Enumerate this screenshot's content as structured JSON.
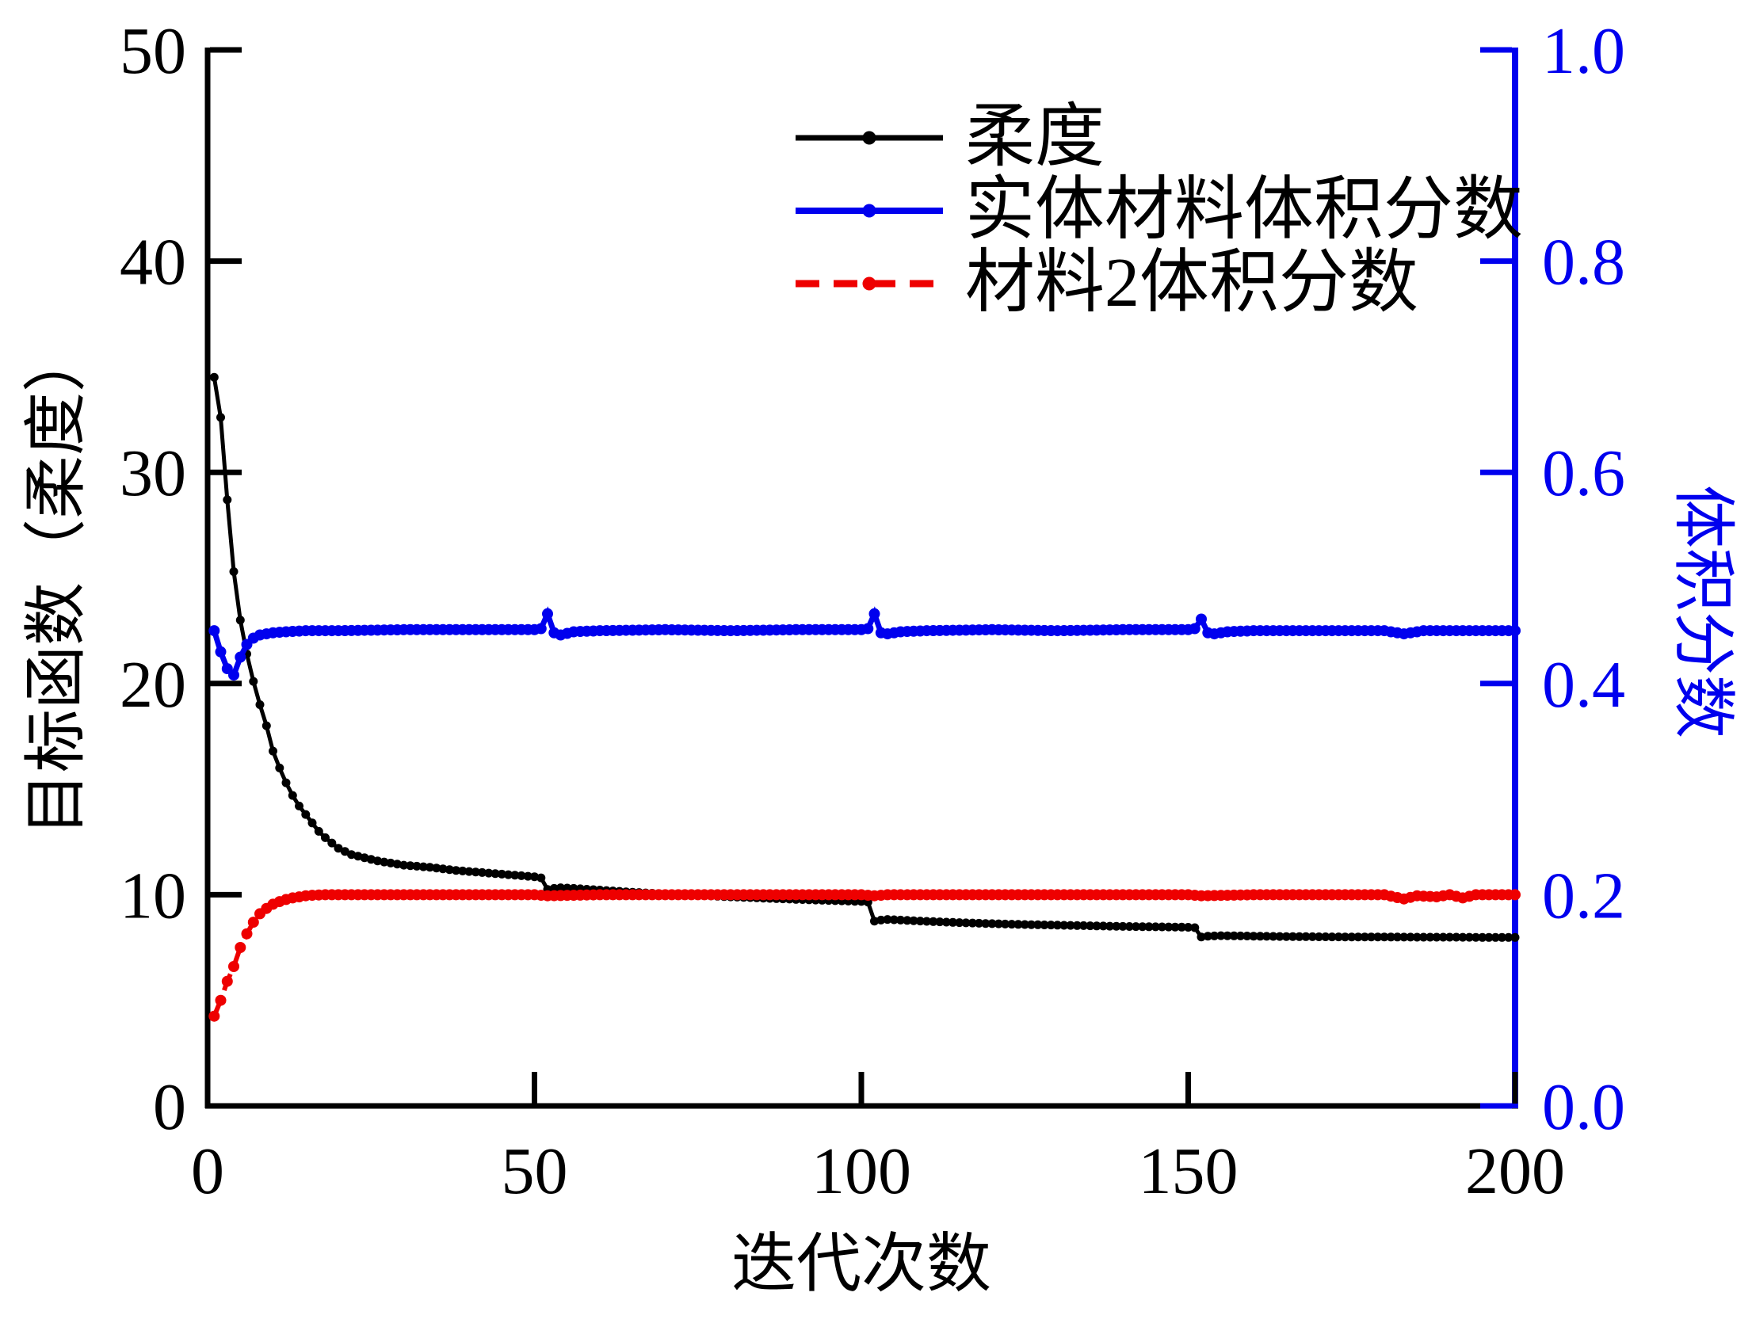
{
  "figure": {
    "background": "#FFFFFF",
    "axes": {
      "left": {
        "title": "目标函数（柔度）",
        "color": "#000000",
        "tick_labels": [
          "0",
          "10",
          "20",
          "30",
          "40",
          "50"
        ]
      },
      "right": {
        "title": "体积分数",
        "color": "#0000EE",
        "tick_labels": [
          "0.0",
          "0.2",
          "0.4",
          "0.6",
          "0.8",
          "1.0"
        ]
      },
      "bottom": {
        "title": "迭代次数",
        "color": "#000000",
        "tick_labels": [
          "0",
          "50",
          "100",
          "150",
          "200"
        ]
      }
    },
    "legend": {
      "items": [
        {
          "label": "柔度",
          "color": "#000000",
          "style": "solid-dot"
        },
        {
          "label": "实体材料体积分数",
          "color": "#0000EE",
          "style": "solid-dot"
        },
        {
          "label": "材料2体积分数",
          "color": "#EE0000",
          "style": "dashed-dot"
        }
      ]
    }
  },
  "chart_data": {
    "type": "line",
    "title": "",
    "xlabel": "迭代次数",
    "ylabel_left": "目标函数（柔度）",
    "ylabel_right": "体积分数",
    "xlim": [
      0,
      200
    ],
    "ylim_left": [
      0,
      50
    ],
    "ylim_right": [
      0.0,
      1.0
    ],
    "x_ticks": [
      0,
      50,
      100,
      150,
      200
    ],
    "y_ticks_left": [
      0,
      10,
      20,
      30,
      40,
      50
    ],
    "y_ticks_right": [
      0.0,
      0.2,
      0.4,
      0.6,
      0.8,
      1.0
    ],
    "grid": false,
    "legend_position": "inside upper right",
    "marker_every": 1,
    "series": [
      {
        "name": "柔度",
        "axis": "left",
        "color": "#000000",
        "style": "solid",
        "marker": "dot",
        "points": [
          [
            1,
            34.5
          ],
          [
            2,
            32.6
          ],
          [
            3,
            28.7
          ],
          [
            4,
            25.3
          ],
          [
            5,
            23.0
          ],
          [
            6,
            21.4
          ],
          [
            7,
            20.1
          ],
          [
            8,
            19.0
          ],
          [
            9,
            18.0
          ],
          [
            10,
            16.8
          ],
          [
            11,
            16.0
          ],
          [
            12,
            15.3
          ],
          [
            13,
            14.7
          ],
          [
            14,
            14.2
          ],
          [
            15,
            13.8
          ],
          [
            16,
            13.4
          ],
          [
            17,
            13.0
          ],
          [
            18,
            12.7
          ],
          [
            19,
            12.45
          ],
          [
            20,
            12.2
          ],
          [
            22,
            11.9
          ],
          [
            24,
            11.75
          ],
          [
            26,
            11.6
          ],
          [
            28,
            11.5
          ],
          [
            30,
            11.4
          ],
          [
            34,
            11.3
          ],
          [
            38,
            11.15
          ],
          [
            42,
            11.05
          ],
          [
            46,
            10.95
          ],
          [
            50,
            10.85
          ],
          [
            51,
            10.8
          ],
          [
            52,
            10.25
          ],
          [
            53,
            10.3
          ],
          [
            54,
            10.33
          ],
          [
            56,
            10.3
          ],
          [
            60,
            10.22
          ],
          [
            65,
            10.12
          ],
          [
            70,
            10.04
          ],
          [
            75,
            9.97
          ],
          [
            80,
            9.9
          ],
          [
            85,
            9.84
          ],
          [
            90,
            9.78
          ],
          [
            95,
            9.73
          ],
          [
            100,
            9.68
          ],
          [
            101,
            9.65
          ],
          [
            102,
            8.75
          ],
          [
            103,
            8.8
          ],
          [
            104,
            8.83
          ],
          [
            106,
            8.8
          ],
          [
            110,
            8.74
          ],
          [
            115,
            8.68
          ],
          [
            120,
            8.63
          ],
          [
            125,
            8.59
          ],
          [
            130,
            8.56
          ],
          [
            135,
            8.53
          ],
          [
            140,
            8.5
          ],
          [
            145,
            8.48
          ],
          [
            150,
            8.46
          ],
          [
            151,
            8.44
          ],
          [
            152,
            8.0
          ],
          [
            153,
            8.04
          ],
          [
            155,
            8.06
          ],
          [
            160,
            8.04
          ],
          [
            165,
            8.02
          ],
          [
            170,
            8.01
          ],
          [
            175,
            8.0
          ],
          [
            180,
            8.0
          ],
          [
            185,
            7.99
          ],
          [
            190,
            7.99
          ],
          [
            195,
            7.98
          ],
          [
            200,
            7.98
          ]
        ]
      },
      {
        "name": "实体材料体积分数",
        "axis": "right",
        "color": "#0000EE",
        "style": "solid",
        "marker": "dot",
        "points": [
          [
            1,
            0.45
          ],
          [
            2,
            0.43
          ],
          [
            3,
            0.414
          ],
          [
            4,
            0.408
          ],
          [
            5,
            0.425
          ],
          [
            6,
            0.437
          ],
          [
            7,
            0.443
          ],
          [
            8,
            0.446
          ],
          [
            10,
            0.448
          ],
          [
            12,
            0.449
          ],
          [
            15,
            0.45
          ],
          [
            20,
            0.45
          ],
          [
            30,
            0.451
          ],
          [
            40,
            0.451
          ],
          [
            50,
            0.451
          ],
          [
            51,
            0.452
          ],
          [
            52,
            0.466
          ],
          [
            53,
            0.448
          ],
          [
            54,
            0.446
          ],
          [
            56,
            0.449
          ],
          [
            60,
            0.45
          ],
          [
            70,
            0.451
          ],
          [
            80,
            0.45
          ],
          [
            90,
            0.451
          ],
          [
            100,
            0.451
          ],
          [
            101,
            0.452
          ],
          [
            102,
            0.466
          ],
          [
            103,
            0.448
          ],
          [
            104,
            0.447
          ],
          [
            106,
            0.449
          ],
          [
            110,
            0.45
          ],
          [
            120,
            0.451
          ],
          [
            130,
            0.45
          ],
          [
            140,
            0.451
          ],
          [
            150,
            0.451
          ],
          [
            151,
            0.452
          ],
          [
            152,
            0.461
          ],
          [
            153,
            0.448
          ],
          [
            154,
            0.447
          ],
          [
            156,
            0.449
          ],
          [
            160,
            0.45
          ],
          [
            170,
            0.45
          ],
          [
            180,
            0.45
          ],
          [
            183,
            0.447
          ],
          [
            186,
            0.45
          ],
          [
            190,
            0.45
          ],
          [
            195,
            0.45
          ],
          [
            200,
            0.45
          ]
        ]
      },
      {
        "name": "材料2体积分数",
        "axis": "right",
        "color": "#EE0000",
        "style": "dashed",
        "marker": "dot",
        "points": [
          [
            1,
            0.085
          ],
          [
            2,
            0.1
          ],
          [
            3,
            0.118
          ],
          [
            4,
            0.132
          ],
          [
            5,
            0.15
          ],
          [
            6,
            0.163
          ],
          [
            7,
            0.174
          ],
          [
            8,
            0.182
          ],
          [
            9,
            0.187
          ],
          [
            10,
            0.191
          ],
          [
            11,
            0.1935
          ],
          [
            12,
            0.1955
          ],
          [
            13,
            0.197
          ],
          [
            14,
            0.198
          ],
          [
            15,
            0.199
          ],
          [
            16,
            0.1995
          ],
          [
            18,
            0.2
          ],
          [
            30,
            0.2
          ],
          [
            50,
            0.2
          ],
          [
            52,
            0.199
          ],
          [
            60,
            0.2
          ],
          [
            100,
            0.2
          ],
          [
            102,
            0.199
          ],
          [
            104,
            0.2
          ],
          [
            150,
            0.2
          ],
          [
            152,
            0.199
          ],
          [
            160,
            0.2
          ],
          [
            180,
            0.2
          ],
          [
            183,
            0.196
          ],
          [
            185,
            0.199
          ],
          [
            188,
            0.198
          ],
          [
            190,
            0.2
          ],
          [
            192,
            0.197
          ],
          [
            194,
            0.2
          ],
          [
            200,
            0.2
          ]
        ]
      }
    ]
  }
}
